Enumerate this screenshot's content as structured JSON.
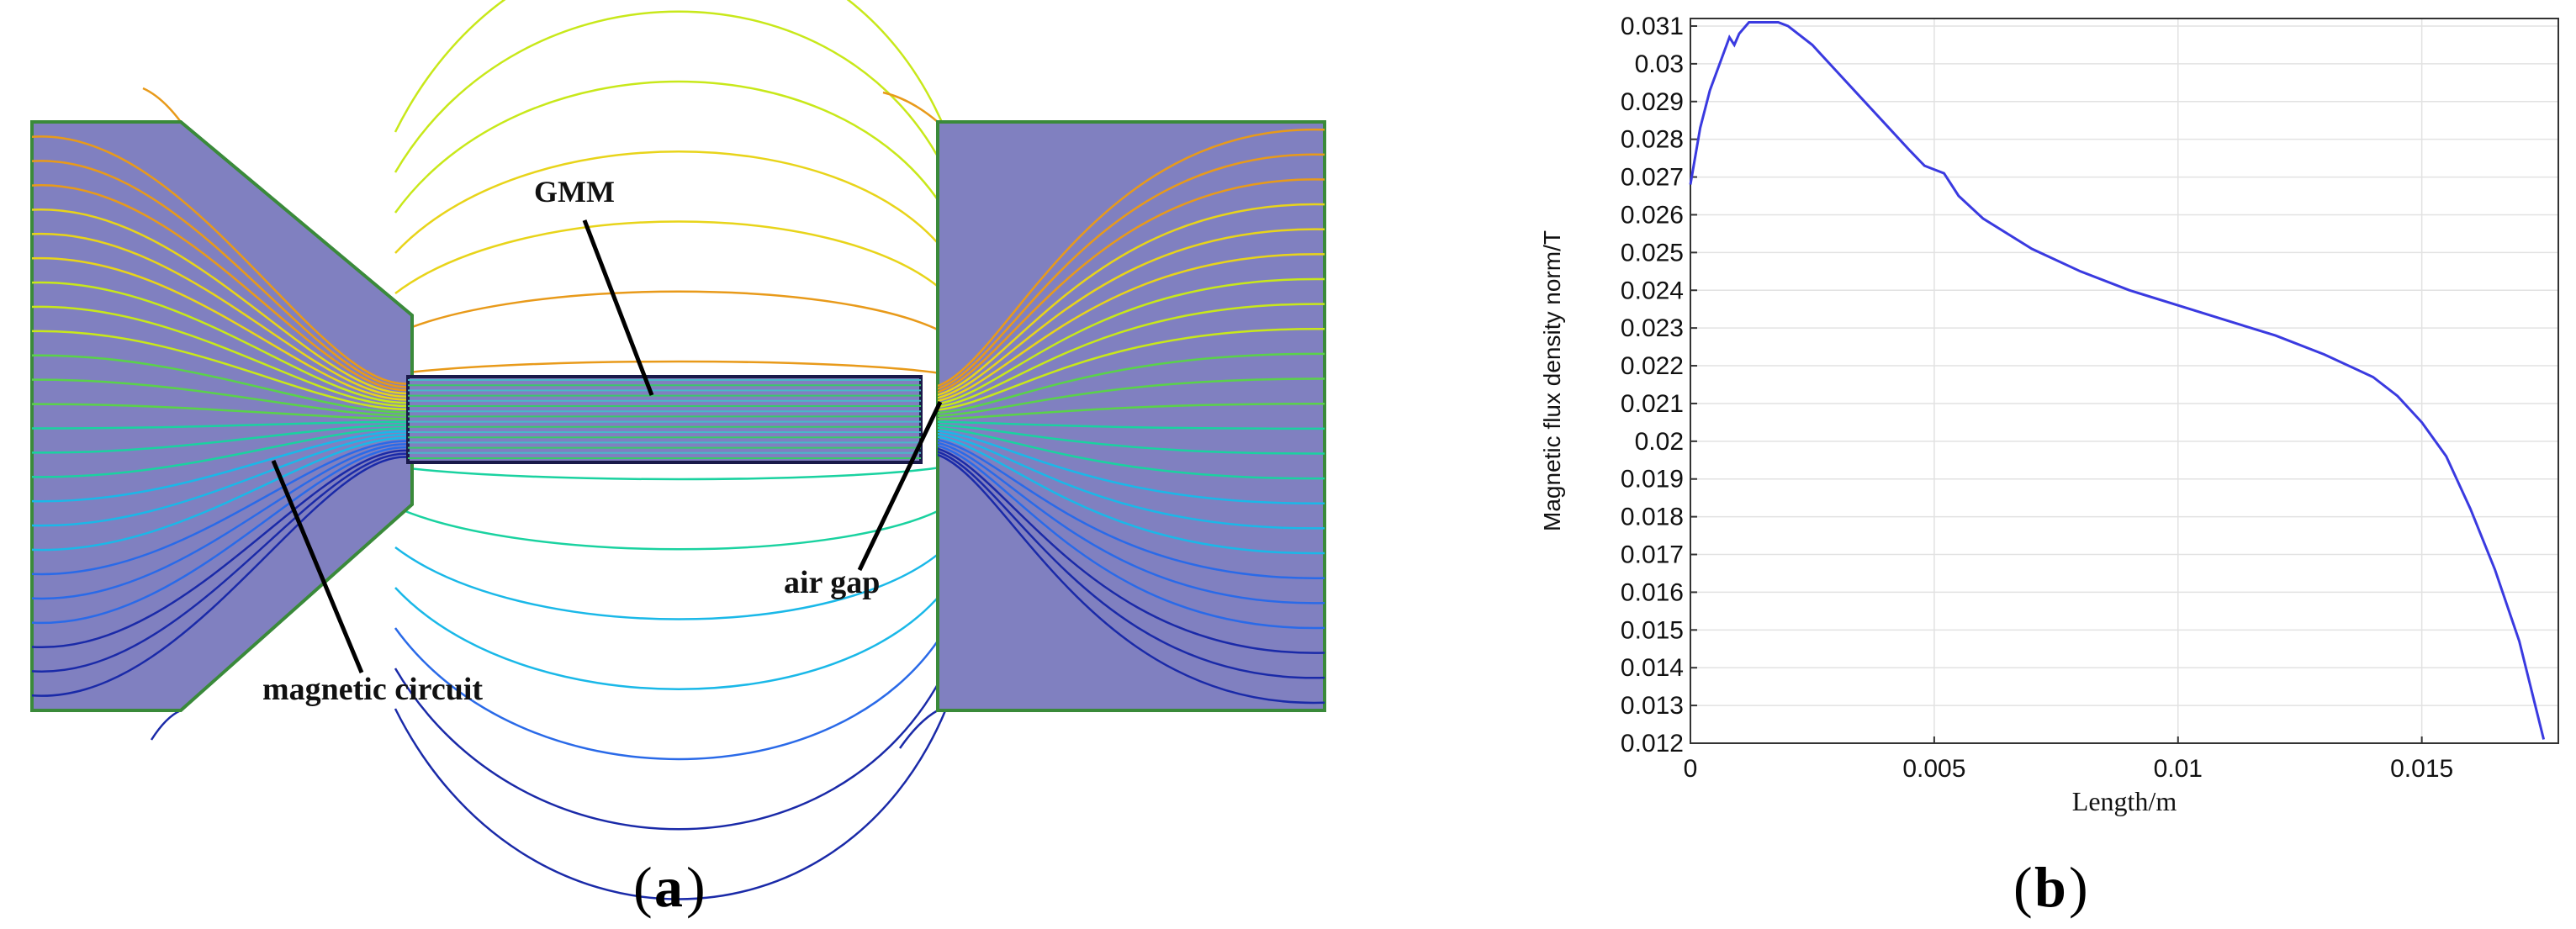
{
  "panel_a": {
    "label_letter": "a",
    "labels": {
      "gmm": "GMM",
      "air_gap": "air gap",
      "magnetic_circuit": "magnetic circuit"
    },
    "colors": {
      "iron_fill": "#8080c0",
      "outline": "#3a8a3a",
      "gmm_outline": "#1a1a4a"
    },
    "field_line_palette": [
      "#e89a1a",
      "#e8d41a",
      "#c8e81a",
      "#5ad24a",
      "#1ad2a0",
      "#1ab8e8",
      "#2a6ae8",
      "#1a2aa8"
    ]
  },
  "panel_b": {
    "label_letter": "b"
  },
  "chart_data": {
    "type": "line",
    "title": "",
    "xlabel": "Length/m",
    "ylabel": "Magnetic flux density norm/T",
    "xlim": [
      0,
      0.0178
    ],
    "ylim": [
      0.012,
      0.0312
    ],
    "x_ticks": [
      "0",
      "0.005",
      "0.01",
      "0.015"
    ],
    "x_tick_values": [
      0,
      0.005,
      0.01,
      0.015
    ],
    "y_ticks": [
      "0.012",
      "0.013",
      "0.014",
      "0.015",
      "0.016",
      "0.017",
      "0.018",
      "0.019",
      "0.02",
      "0.021",
      "0.022",
      "0.023",
      "0.024",
      "0.025",
      "0.026",
      "0.027",
      "0.028",
      "0.029",
      "0.03",
      "0.031"
    ],
    "y_tick_values": [
      0.012,
      0.013,
      0.014,
      0.015,
      0.016,
      0.017,
      0.018,
      0.019,
      0.02,
      0.021,
      0.022,
      0.023,
      0.024,
      0.025,
      0.026,
      0.027,
      0.028,
      0.029,
      0.03,
      0.031
    ],
    "grid": true,
    "line_color": "#3a3ae0",
    "series": [
      {
        "x": [
          0,
          0.0002,
          0.0004,
          0.0006,
          0.0008,
          0.0009,
          0.001,
          0.0012,
          0.0014,
          0.0016,
          0.0018,
          0.002,
          0.0025,
          0.003,
          0.0035,
          0.004,
          0.0045,
          0.0048,
          0.005,
          0.0052,
          0.0055,
          0.006,
          0.007,
          0.008,
          0.009,
          0.01,
          0.011,
          0.012,
          0.013,
          0.014,
          0.0145,
          0.015,
          0.0155,
          0.016,
          0.0165,
          0.017,
          0.0175
        ],
        "values": [
          0.0268,
          0.0283,
          0.0293,
          0.03,
          0.0307,
          0.0305,
          0.0308,
          0.0311,
          0.0311,
          0.0311,
          0.0311,
          0.031,
          0.0305,
          0.0298,
          0.0291,
          0.0284,
          0.0277,
          0.0273,
          0.0272,
          0.0271,
          0.0265,
          0.0259,
          0.0251,
          0.0245,
          0.024,
          0.0236,
          0.0232,
          0.0228,
          0.0223,
          0.0217,
          0.0212,
          0.0205,
          0.0196,
          0.0182,
          0.0166,
          0.0147,
          0.0121
        ]
      }
    ]
  }
}
